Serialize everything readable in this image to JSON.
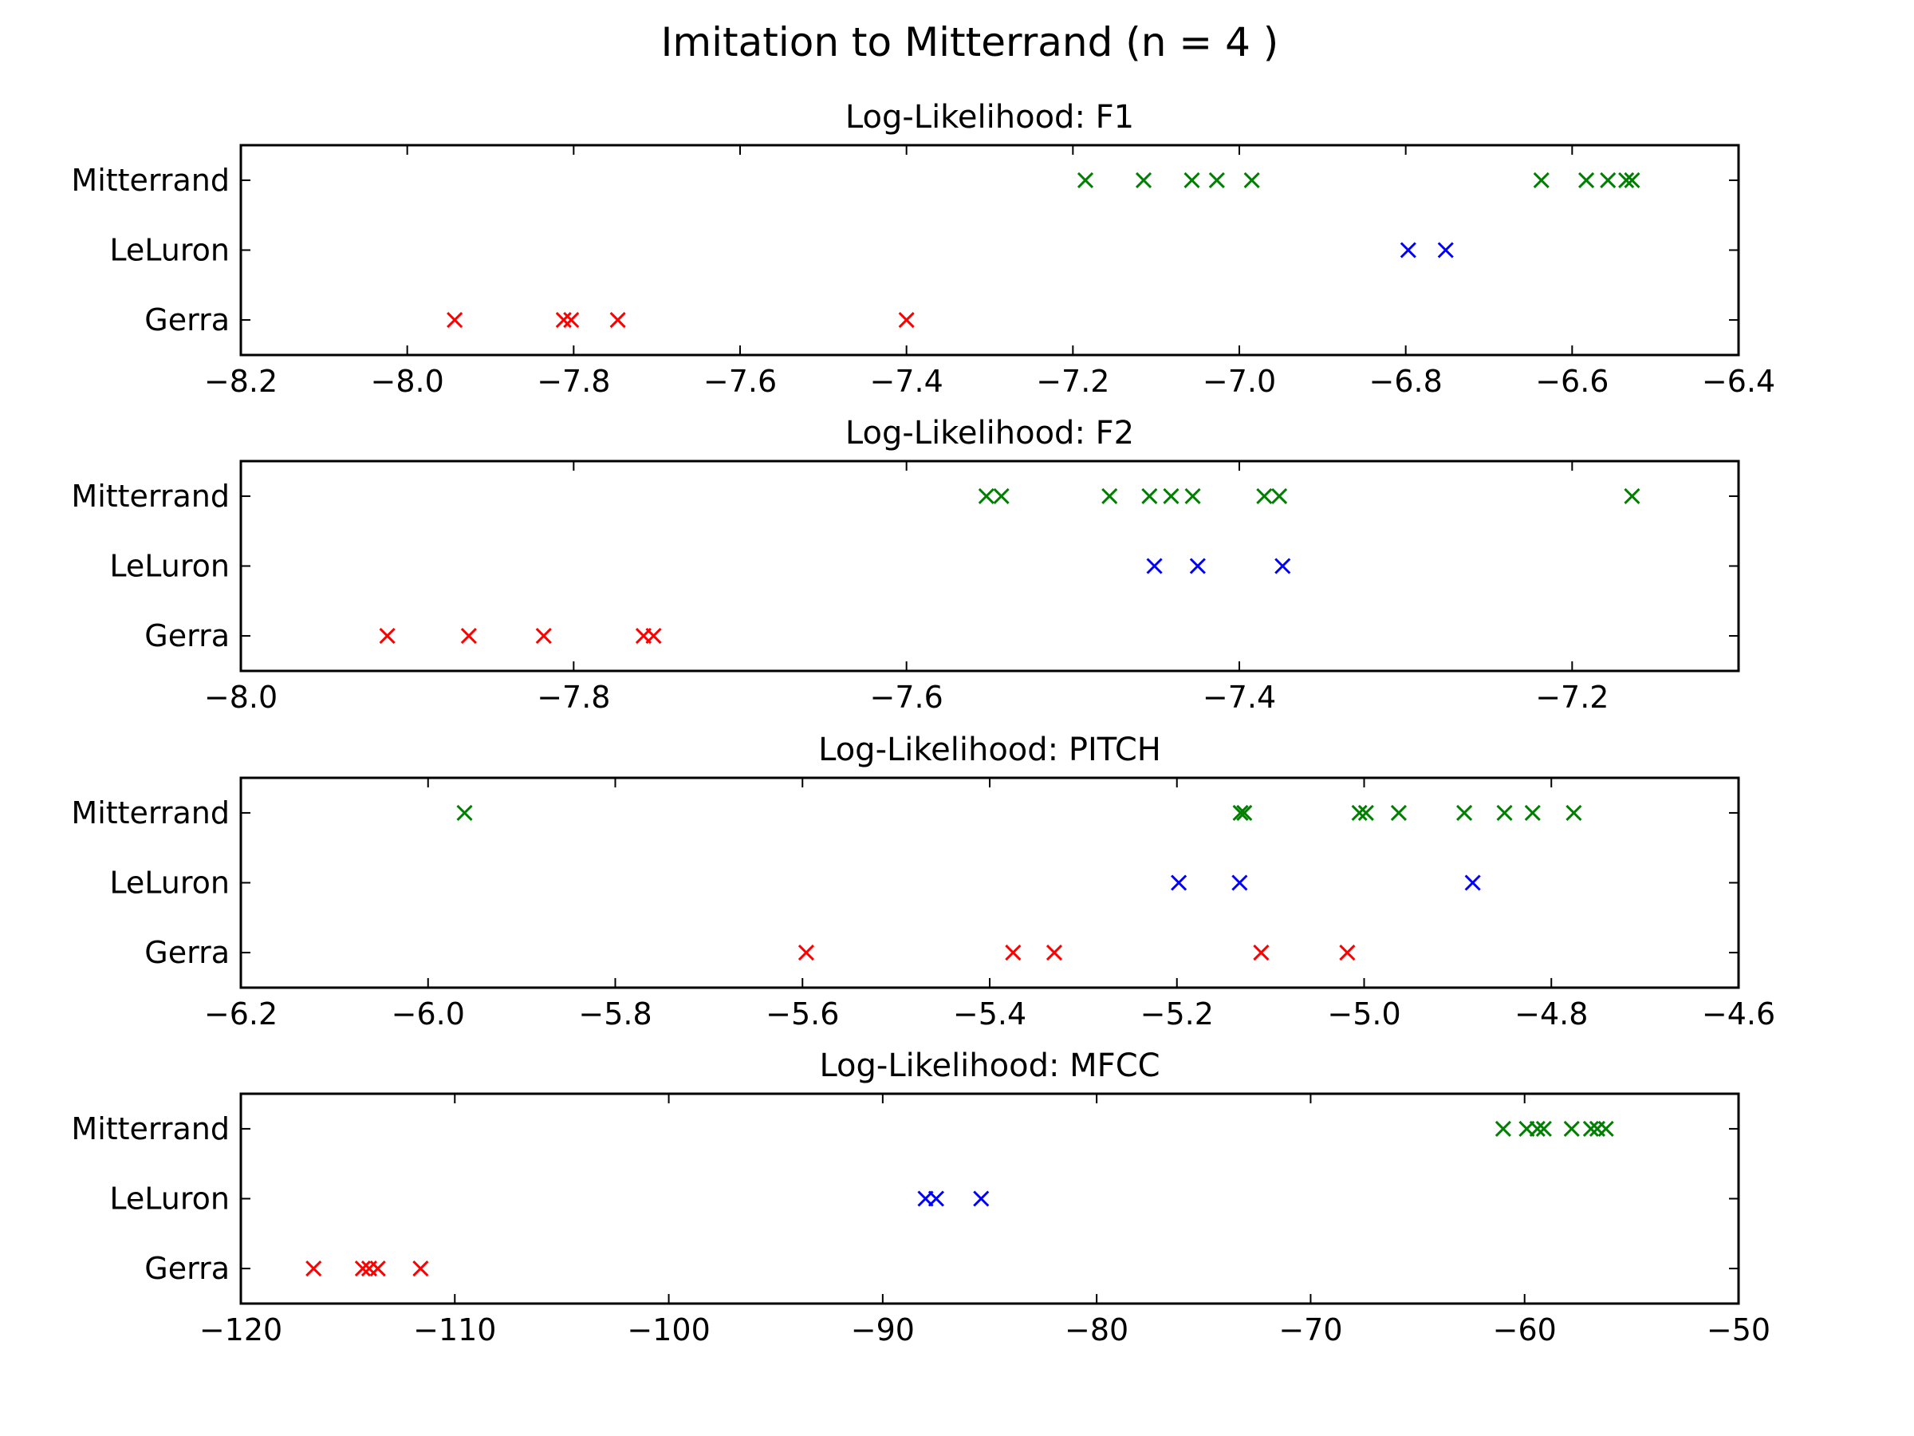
{
  "title": "Imitation to Mitterrand (n = 4 )",
  "colors": {
    "Mitterrand": "#008000",
    "LeLuron": "#0000ff",
    "Gerra": "#ff0000"
  },
  "chart_data": [
    {
      "type": "scatter",
      "title": "Log-Likelihood: F1",
      "y_categories": [
        "Gerra",
        "LeLuron",
        "Mitterrand"
      ],
      "xlim": [
        -8.2,
        -6.4
      ],
      "xticks": [
        -8.2,
        -8.0,
        -7.8,
        -7.6,
        -7.4,
        -7.2,
        -7.0,
        -6.8,
        -6.6,
        -6.4
      ],
      "xtick_labels": [
        "−8.2",
        "−8.0",
        "−7.8",
        "−7.6",
        "−7.4",
        "−7.2",
        "−7.0",
        "−6.8",
        "−6.6",
        "−6.4"
      ],
      "marker": "x",
      "series": [
        {
          "name": "Mitterrand",
          "color": "#008000",
          "x": [
            -7.185,
            -7.115,
            -7.057,
            -7.027,
            -6.985,
            -6.637,
            -6.583,
            -6.557,
            -6.535,
            -6.528
          ]
        },
        {
          "name": "LeLuron",
          "color": "#0000ff",
          "x": [
            -6.797,
            -6.752
          ]
        },
        {
          "name": "Gerra",
          "color": "#ff0000",
          "x": [
            -7.943,
            -7.812,
            -7.803,
            -7.747,
            -7.4
          ]
        }
      ]
    },
    {
      "type": "scatter",
      "title": "Log-Likelihood: F2",
      "y_categories": [
        "Gerra",
        "LeLuron",
        "Mitterrand"
      ],
      "xlim": [
        -8.0,
        -7.1
      ],
      "xticks": [
        -8.0,
        -7.8,
        -7.6,
        -7.4,
        -7.2
      ],
      "xtick_labels": [
        "−8.0",
        "−7.8",
        "−7.6",
        "−7.4",
        "−7.2"
      ],
      "marker": "x",
      "series": [
        {
          "name": "Mitterrand",
          "color": "#008000",
          "x": [
            -7.552,
            -7.543,
            -7.478,
            -7.454,
            -7.441,
            -7.428,
            -7.385,
            -7.376,
            -7.164
          ]
        },
        {
          "name": "LeLuron",
          "color": "#0000ff",
          "x": [
            -7.451,
            -7.425,
            -7.374
          ]
        },
        {
          "name": "Gerra",
          "color": "#ff0000",
          "x": [
            -7.912,
            -7.863,
            -7.818,
            -7.758,
            -7.752
          ]
        }
      ]
    },
    {
      "type": "scatter",
      "title": "Log-Likelihood: PITCH",
      "y_categories": [
        "Gerra",
        "LeLuron",
        "Mitterrand"
      ],
      "xlim": [
        -6.2,
        -4.6
      ],
      "xticks": [
        -6.2,
        -6.0,
        -5.8,
        -5.6,
        -5.4,
        -5.2,
        -5.0,
        -4.8,
        -4.6
      ],
      "xtick_labels": [
        "−6.2",
        "−6.0",
        "−5.8",
        "−5.6",
        "−5.4",
        "−5.2",
        "−5.0",
        "−4.8",
        "−4.6"
      ],
      "marker": "x",
      "series": [
        {
          "name": "Mitterrand",
          "color": "#008000",
          "x": [
            -5.961,
            -5.132,
            -5.128,
            -5.005,
            -4.998,
            -4.963,
            -4.893,
            -4.85,
            -4.82,
            -4.776
          ]
        },
        {
          "name": "LeLuron",
          "color": "#0000ff",
          "x": [
            -5.198,
            -5.133,
            -4.884
          ]
        },
        {
          "name": "Gerra",
          "color": "#ff0000",
          "x": [
            -5.596,
            -5.375,
            -5.331,
            -5.11,
            -5.018
          ]
        }
      ]
    },
    {
      "type": "scatter",
      "title": "Log-Likelihood: MFCC",
      "y_categories": [
        "Gerra",
        "LeLuron",
        "Mitterrand"
      ],
      "xlim": [
        -120,
        -50
      ],
      "xticks": [
        -120,
        -110,
        -100,
        -90,
        -80,
        -70,
        -60,
        -50
      ],
      "xtick_labels": [
        "−120",
        "−110",
        "−100",
        "−90",
        "−80",
        "−70",
        "−60",
        "−50"
      ],
      "marker": "x",
      "series": [
        {
          "name": "Mitterrand",
          "color": "#008000",
          "x": [
            -61.0,
            -59.9,
            -59.4,
            -59.1,
            -57.8,
            -56.9,
            -56.6,
            -56.2
          ]
        },
        {
          "name": "LeLuron",
          "color": "#0000ff",
          "x": [
            -88.0,
            -87.5,
            -85.4
          ]
        },
        {
          "name": "Gerra",
          "color": "#ff0000",
          "x": [
            -116.6,
            -114.3,
            -114.0,
            -113.6,
            -111.6
          ]
        }
      ]
    }
  ]
}
